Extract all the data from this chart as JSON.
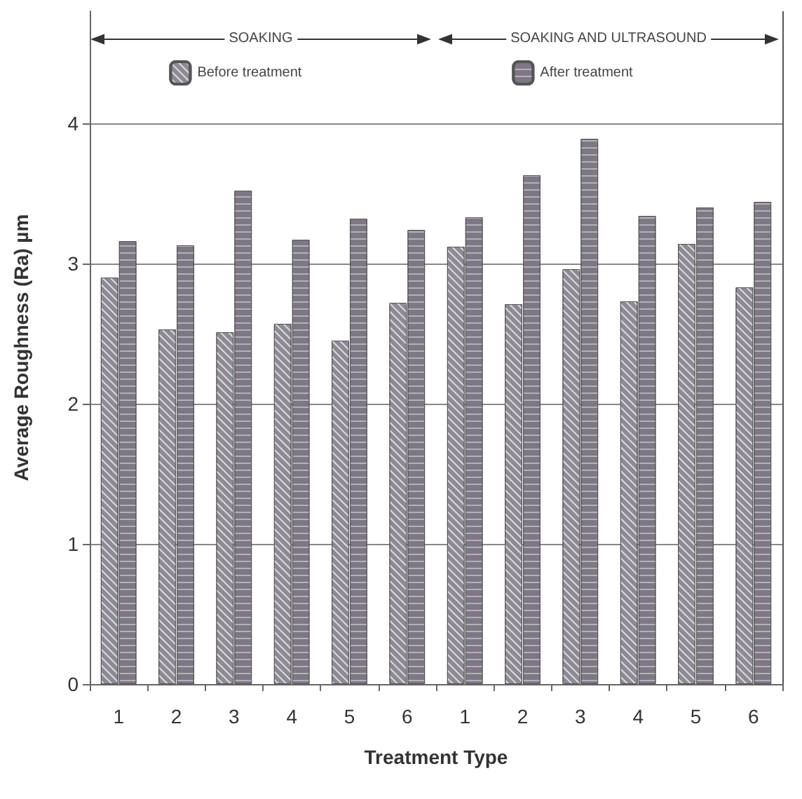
{
  "chart_data": {
    "type": "bar",
    "xlabel": "Treatment Type",
    "ylabel": "Average Roughness (Ra) µm",
    "categories": [
      "1",
      "2",
      "3",
      "4",
      "5",
      "6",
      "1",
      "2",
      "3",
      "4",
      "5",
      "6"
    ],
    "series": [
      {
        "name": "Before treatment",
        "color": "#8e8a94",
        "values": [
          2.9,
          2.53,
          2.51,
          2.57,
          2.45,
          2.72,
          3.12,
          2.71,
          2.96,
          2.73,
          3.14,
          2.83
        ]
      },
      {
        "name": "After treatment",
        "color": "#7d7884",
        "values": [
          3.16,
          3.13,
          3.52,
          3.17,
          3.32,
          3.24,
          3.33,
          3.63,
          3.89,
          3.34,
          3.4,
          3.44
        ]
      }
    ],
    "ylim": [
      0,
      4.8
    ],
    "yticks": [
      0,
      1,
      2,
      3,
      4
    ],
    "grid": "y",
    "legend": "top",
    "annotations": [
      "SOAKING",
      "SOAKING AND ULTRASOUND"
    ]
  }
}
